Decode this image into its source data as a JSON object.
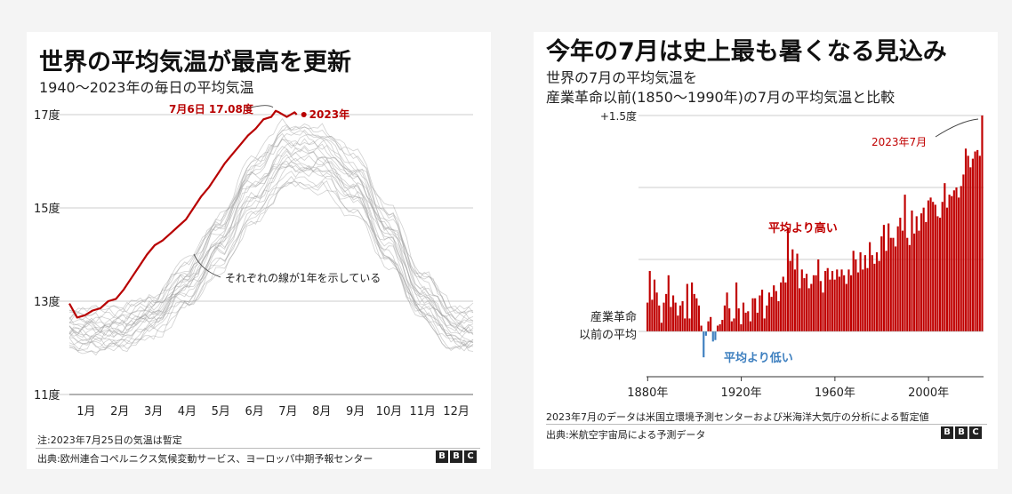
{
  "left": {
    "title": "世界の平均気温が最高を更新",
    "subtitle": "1940〜2023年の毎日の平均気温",
    "note": "注:2023年7月25日の気温は暫定",
    "source": "出典:欧州連合コペルニクス気候変動サービス、ヨーロッパ中期予報センター",
    "annotation_lines": "それぞれの線が1年を示している",
    "annotation_peak": "7月6日 17.08度",
    "highlight_label": "2023年",
    "colors": {
      "highlight": "#b80000",
      "history": "#9a9a9a",
      "grid": "#cccccc"
    }
  },
  "right": {
    "title": "今年の7月は史上最も暑くなる見込み",
    "subtitle1": "世界の7月の平均気温を",
    "subtitle2": "産業革命以前(1850〜1990年)の7月の平均気温と比較",
    "label_high": "平均より高い",
    "label_low": "平均より低い",
    "label_2023": "2023年7月",
    "baseline_label1": "産業革命",
    "baseline_label2": "以前の平均",
    "top_tick": "+1.5度",
    "note": "2023年7月のデータは米国立環境予測センターおよび米海洋大気庁の分析による暫定値",
    "source": "出典:米航空宇宙局による予測データ",
    "colors": {
      "positive": "#c00000",
      "negative": "#3d7fbf"
    }
  },
  "bbc_logo": [
    "B",
    "B",
    "C"
  ],
  "chart_data": [
    {
      "type": "line",
      "title": "世界の平均気温が最高を更新",
      "subtitle": "1940〜2023年の毎日の平均気温",
      "x_categories": [
        "1月",
        "2月",
        "3月",
        "4月",
        "5月",
        "6月",
        "7月",
        "8月",
        "9月",
        "10月",
        "11月",
        "12月"
      ],
      "y_ticks": [
        "11度",
        "13度",
        "15度",
        "17度"
      ],
      "ylim": [
        11,
        17.2
      ],
      "series": [
        {
          "name": "2023年",
          "x_day": [
            1,
            8,
            15,
            22,
            29,
            36,
            43,
            50,
            57,
            64,
            71,
            78,
            85,
            92,
            99,
            106,
            113,
            120,
            127,
            134,
            141,
            148,
            155,
            162,
            169,
            176,
            183,
            187,
            190,
            197,
            204,
            206
          ],
          "y": [
            12.95,
            12.65,
            12.7,
            12.8,
            12.85,
            13.0,
            13.05,
            13.25,
            13.5,
            13.75,
            14.0,
            14.2,
            14.3,
            14.45,
            14.6,
            14.75,
            15.0,
            15.25,
            15.45,
            15.7,
            15.95,
            16.15,
            16.35,
            16.55,
            16.7,
            16.9,
            16.95,
            17.08,
            17.05,
            16.95,
            17.05,
            17.0
          ]
        }
      ],
      "history_envelope": {
        "x_month": [
          "1月",
          "2月",
          "3月",
          "4月",
          "5月",
          "6月",
          "7月",
          "8月",
          "9月",
          "10月",
          "11月",
          "12月"
        ],
        "low": [
          12.0,
          12.0,
          12.3,
          12.9,
          13.7,
          14.8,
          15.5,
          15.5,
          14.9,
          13.8,
          12.6,
          12.0
        ],
        "high": [
          12.8,
          12.8,
          13.1,
          13.8,
          14.9,
          16.1,
          16.7,
          16.7,
          16.2,
          15.0,
          13.6,
          12.8
        ]
      },
      "annotations": [
        "7月6日 17.08度",
        "それぞれの線が1年を示している"
      ]
    },
    {
      "type": "bar",
      "title": "今年の7月は史上最も暑くなる見込み",
      "x_start": 1880,
      "x_end": 2023,
      "x_ticks": [
        "1880年",
        "1920年",
        "1960年",
        "2000年"
      ],
      "y_tick_top": "+1.5度",
      "ylim": [
        -0.3,
        1.5
      ],
      "values": [
        0.2,
        0.42,
        0.22,
        0.36,
        0.27,
        0.18,
        0.06,
        0.2,
        0.26,
        0.39,
        0.17,
        0.25,
        0.2,
        0.11,
        0.18,
        0.21,
        0.09,
        0.33,
        0.09,
        0.34,
        0.26,
        0.23,
        0.18,
        0.04,
        -0.18,
        -0.03,
        0.07,
        0.1,
        -0.07,
        -0.06,
        0.04,
        0.05,
        0.08,
        0.18,
        0.27,
        0.16,
        0.07,
        0.09,
        0.34,
        0.16,
        0.05,
        0.2,
        0.13,
        0.14,
        0.07,
        0.23,
        0.23,
        0.13,
        0.25,
        0.29,
        0.09,
        0.18,
        0.27,
        0.24,
        0.32,
        0.28,
        0.21,
        0.34,
        0.38,
        0.34,
        0.72,
        0.49,
        0.57,
        0.43,
        0.54,
        0.3,
        0.43,
        0.37,
        0.4,
        0.3,
        0.33,
        0.39,
        0.39,
        0.5,
        0.35,
        0.27,
        0.42,
        0.44,
        0.36,
        0.42,
        0.36,
        0.43,
        0.38,
        0.43,
        0.39,
        0.33,
        0.43,
        0.39,
        0.56,
        0.5,
        0.41,
        0.55,
        0.43,
        0.53,
        0.44,
        0.62,
        0.53,
        0.47,
        0.55,
        0.49,
        0.66,
        0.74,
        0.56,
        0.75,
        0.65,
        0.65,
        0.59,
        0.73,
        0.79,
        0.7,
        0.95,
        0.65,
        0.6,
        0.84,
        0.68,
        0.8,
        0.7,
        0.82,
        0.86,
        0.76,
        0.91,
        0.93,
        0.9,
        0.88,
        0.8,
        0.79,
        0.9,
        1.03,
        0.86,
        0.95,
        0.94,
        0.98,
        1.0,
        0.93,
        1.01,
        1.09,
        1.27,
        1.22,
        1.14,
        1.2,
        1.25,
        1.26,
        1.22,
        1.5
      ]
    }
  ]
}
